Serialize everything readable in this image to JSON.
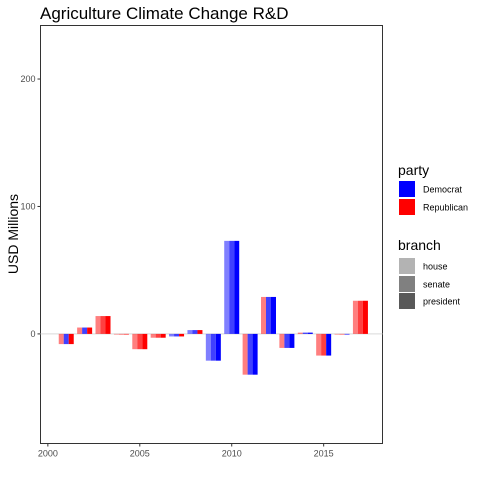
{
  "chart_data": {
    "type": "bar",
    "title": "Agriculture Climate Change R&D",
    "xlabel": "",
    "ylabel": "USD Millions",
    "xlim": [
      1999.6,
      2018.2
    ],
    "ylim": [
      -86,
      242
    ],
    "x_ticks": [
      2000,
      2005,
      2010,
      2015
    ],
    "y_ticks": [
      0,
      100,
      200
    ],
    "grid": false,
    "legend_position": "right",
    "legends": {
      "party": {
        "title": "party",
        "entries": [
          {
            "label": "Democrat",
            "color": "#0000ff"
          },
          {
            "label": "Republican",
            "color": "#ff0000"
          }
        ]
      },
      "branch": {
        "title": "branch",
        "entries": [
          {
            "label": "house",
            "color": "#b3b3b3"
          },
          {
            "label": "senate",
            "color": "#808080"
          },
          {
            "label": "president",
            "color": "#595959"
          }
        ]
      }
    },
    "series": [
      {
        "name": "house",
        "alpha": 0.5
      },
      {
        "name": "senate",
        "alpha": 0.75
      },
      {
        "name": "president",
        "alpha": 1.0
      }
    ],
    "years": [
      {
        "year": 2001,
        "value": -8,
        "house": "Republican",
        "senate": "Democrat",
        "president": "Republican"
      },
      {
        "year": 2002,
        "value": 5,
        "house": "Republican",
        "senate": "Democrat",
        "president": "Republican"
      },
      {
        "year": 2003,
        "value": 14,
        "house": "Republican",
        "senate": "Republican",
        "president": "Republican"
      },
      {
        "year": 2004,
        "value": 0,
        "house": "Republican",
        "senate": "Republican",
        "president": "Republican"
      },
      {
        "year": 2005,
        "value": -12,
        "house": "Republican",
        "senate": "Republican",
        "president": "Republican"
      },
      {
        "year": 2006,
        "value": -3,
        "house": "Republican",
        "senate": "Republican",
        "president": "Republican"
      },
      {
        "year": 2007,
        "value": -2,
        "house": "Democrat",
        "senate": "Democrat",
        "president": "Republican"
      },
      {
        "year": 2008,
        "value": 3,
        "house": "Democrat",
        "senate": "Democrat",
        "president": "Republican"
      },
      {
        "year": 2009,
        "value": -21,
        "house": "Democrat",
        "senate": "Democrat",
        "president": "Democrat"
      },
      {
        "year": 2010,
        "value": 73,
        "house": "Democrat",
        "senate": "Democrat",
        "president": "Democrat"
      },
      {
        "year": 2011,
        "value": -32,
        "house": "Republican",
        "senate": "Democrat",
        "president": "Democrat"
      },
      {
        "year": 2012,
        "value": 29,
        "house": "Republican",
        "senate": "Democrat",
        "president": "Democrat"
      },
      {
        "year": 2013,
        "value": -11,
        "house": "Republican",
        "senate": "Democrat",
        "president": "Democrat"
      },
      {
        "year": 2014,
        "value": 1,
        "house": "Republican",
        "senate": "Democrat",
        "president": "Democrat"
      },
      {
        "year": 2015,
        "value": -17,
        "house": "Republican",
        "senate": "Republican",
        "president": "Democrat"
      },
      {
        "year": 2016,
        "value": 0,
        "house": "Republican",
        "senate": "Republican",
        "president": "Democrat"
      },
      {
        "year": 2017,
        "value": 26,
        "house": "Republican",
        "senate": "Republican",
        "president": "Republican"
      }
    ]
  }
}
